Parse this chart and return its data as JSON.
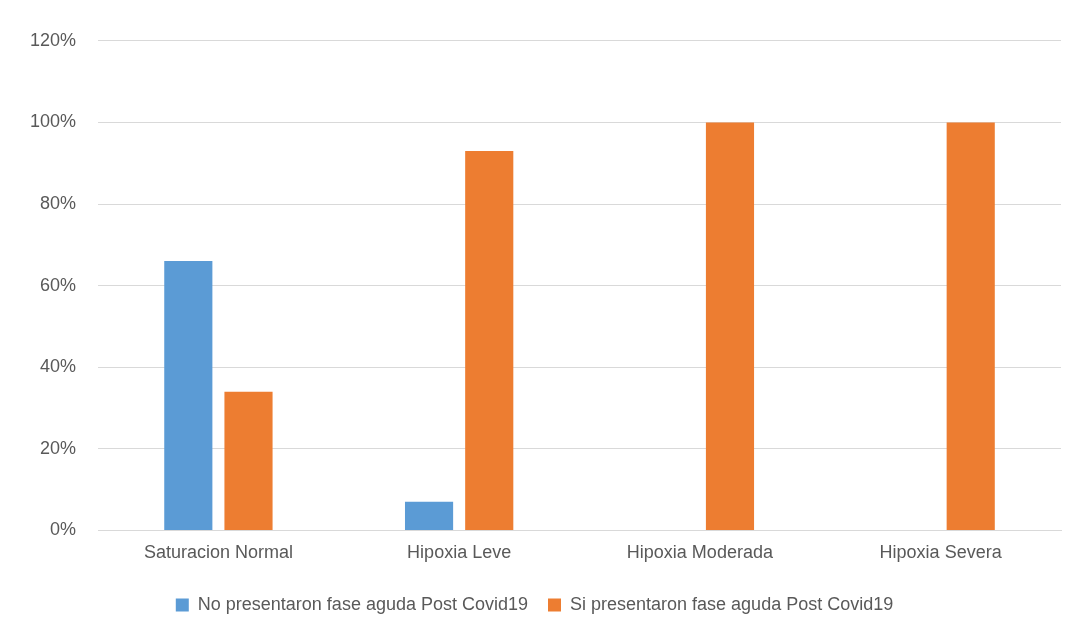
{
  "chart_data": {
    "type": "bar",
    "categories": [
      "Saturacion Normal",
      "Hipoxia Leve",
      "Hipoxia Moderada",
      "Hipoxia Severa"
    ],
    "series": [
      {
        "name": "No presentaron fase aguda Post Covid19",
        "color": "#5b9bd5",
        "values": [
          66,
          7,
          0,
          0
        ]
      },
      {
        "name": "Si presentaron fase aguda Post Covid19",
        "color": "#ed7d31",
        "values": [
          34,
          93,
          100,
          100
        ]
      }
    ],
    "ylim": [
      0,
      120
    ],
    "yticks": [
      {
        "value": 0,
        "label": "0%"
      },
      {
        "value": 20,
        "label": "20%"
      },
      {
        "value": 40,
        "label": "40%"
      },
      {
        "value": 60,
        "label": "60%"
      },
      {
        "value": 80,
        "label": "80%"
      },
      {
        "value": 100,
        "label": "100%"
      },
      {
        "value": 120,
        "label": "120%"
      }
    ],
    "grid": "y",
    "legend": "bottom"
  }
}
